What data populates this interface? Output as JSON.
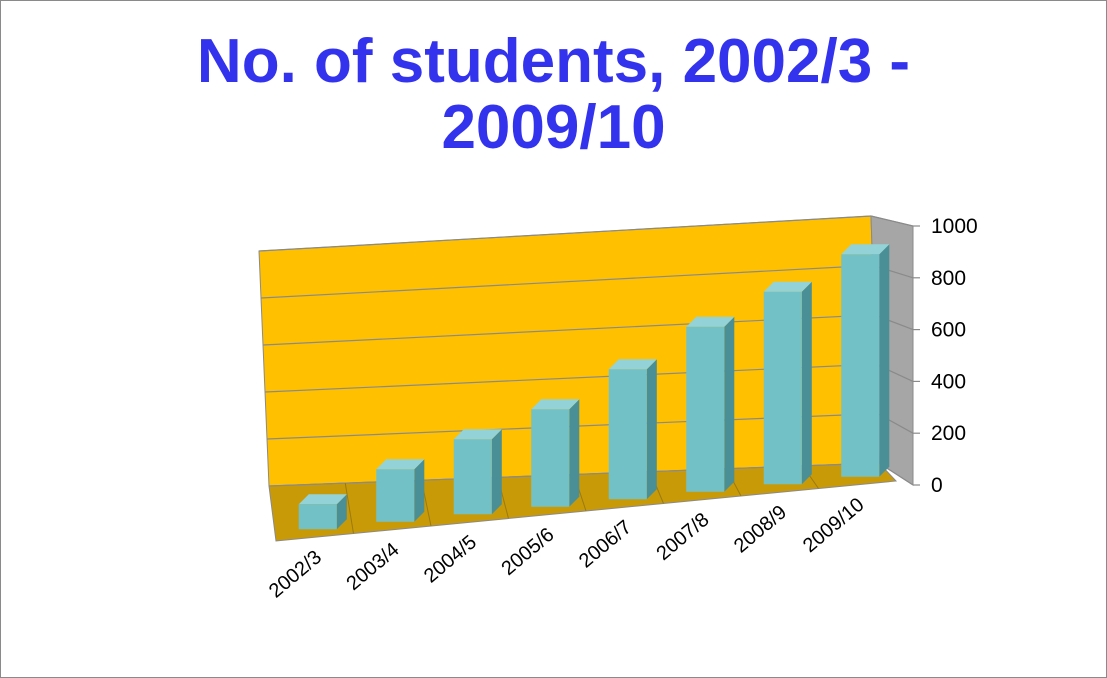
{
  "title_lines": [
    "No. of students, 2002/3 -",
    "2009/10"
  ],
  "colors": {
    "title": "#3333ee",
    "back_wall": "#ffc000",
    "floor": "#c99a08",
    "side_wall": "#a6a6a6",
    "bar_front": "#72c1c7",
    "bar_side": "#4a8f95",
    "bar_top": "#93d3d8",
    "grid": "#8a8a8a",
    "text": "#000000"
  },
  "chart_data": {
    "type": "bar",
    "title": "No. of students, 2002/3 - 2009/10",
    "categories": [
      "2002/3",
      "2003/4",
      "2004/5",
      "2005/6",
      "2006/7",
      "2007/8",
      "2008/9",
      "2009/10"
    ],
    "series": [
      {
        "values": [
          100,
          210,
          300,
          390,
          520,
          660,
          770,
          890
        ]
      }
    ],
    "ylim": [
      0,
      1000
    ],
    "yticks": [
      0,
      200,
      400,
      600,
      800,
      1000
    ],
    "grid": true,
    "legend": "none",
    "style": "3d-column"
  }
}
